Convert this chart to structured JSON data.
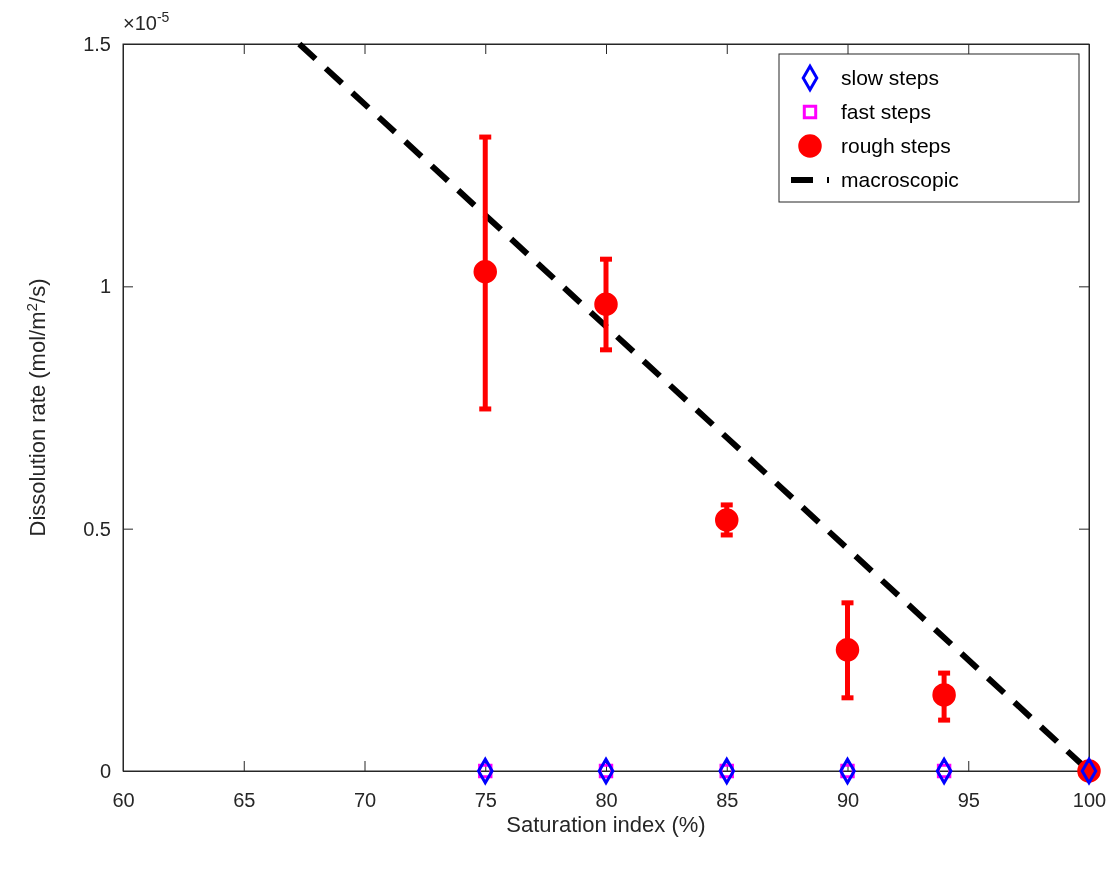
{
  "chart_data": {
    "type": "scatter",
    "xlabel": "Saturation index (%)",
    "ylabel": "Dissolution rate (mol/m$^{2}$/s)",
    "annotations": [
      "×10$^{-5}$"
    ],
    "xlim": [
      60,
      100
    ],
    "xticks": [
      60,
      65,
      70,
      75,
      80,
      85,
      90,
      95,
      100
    ],
    "ylim": [
      0,
      1.5
    ],
    "yticks": [
      0,
      0.5,
      1,
      1.5
    ],
    "grid": false,
    "legend": "top right",
    "series": [
      {
        "name": "slow steps",
        "marker": "diamond",
        "color": "#0000ff",
        "x": [
          75,
          80,
          85,
          90,
          94,
          100
        ],
        "values": [
          0,
          0,
          0,
          0,
          0,
          0
        ]
      },
      {
        "name": "fast steps",
        "marker": "square",
        "color": "#ff00ff",
        "x": [
          75,
          80,
          85,
          90,
          94
        ],
        "values": [
          0,
          0,
          0,
          0,
          0
        ]
      },
      {
        "name": "rough steps",
        "marker": "circle",
        "color": "#ff0000",
        "x": [
          75,
          80,
          85,
          90,
          94,
          100
        ],
        "values": [
          1.03,
          0.963,
          0.518,
          0.25,
          0.157,
          0
        ],
        "errors": [
          [
            0.747,
            1.308
          ],
          [
            0.869,
            1.056
          ],
          [
            0.487,
            0.549
          ],
          [
            0.151,
            0.347
          ],
          [
            0.105,
            0.202
          ],
          null
        ]
      },
      {
        "name": "macroscopic",
        "type": "line",
        "marker": "none",
        "line_style": "dashed",
        "color": "#000000",
        "x": [
          67.3,
          100
        ],
        "values": [
          1.5,
          0
        ]
      }
    ]
  }
}
